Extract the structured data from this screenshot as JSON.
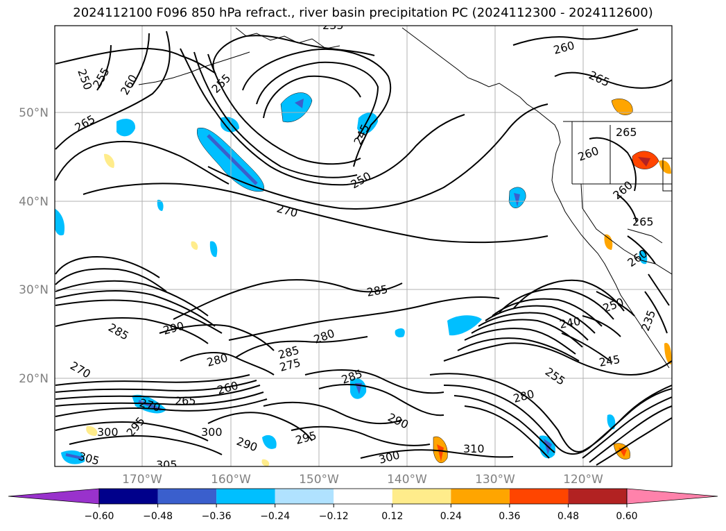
{
  "title": "2024112100 F096 850 hPa refract., river basin precipitation PC (2024112300 - 2024112600)",
  "map": {
    "lat_labels": [
      "50°N",
      "40°N",
      "30°N",
      "20°N"
    ],
    "lon_labels": [
      "170°W",
      "160°W",
      "150°W",
      "140°W",
      "130°W",
      "120°W"
    ],
    "contour_labels": [
      "250",
      "255",
      "260",
      "265",
      "235",
      "245",
      "250",
      "270",
      "260",
      "265",
      "260",
      "265",
      "260",
      "255",
      "285",
      "290",
      "285",
      "280",
      "285",
      "275",
      "280",
      "270",
      "260",
      "265",
      "270",
      "300",
      "295",
      "305",
      "305",
      "300",
      "290",
      "295",
      "285",
      "290",
      "300",
      "310",
      "280",
      "255",
      "245",
      "240",
      "250",
      "235",
      "265",
      "260"
    ]
  },
  "colorbar": {
    "ticks": [
      "−0.60",
      "−0.48",
      "−0.36",
      "−0.24",
      "−0.12",
      "0.12",
      "0.24",
      "0.36",
      "0.48",
      "0.60"
    ],
    "colors": [
      "#9932cc",
      "#00008b",
      "#3a5fcd",
      "#00bfff",
      "#b0e2ff",
      "#ffffff",
      "#ffec8b",
      "#ffa500",
      "#ff4500",
      "#b22222",
      "#ff82ab"
    ]
  }
}
